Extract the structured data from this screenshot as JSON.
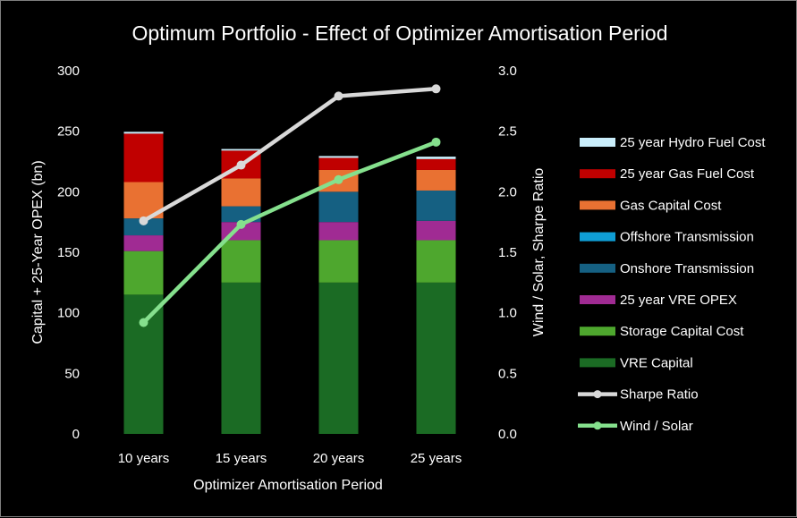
{
  "chart_data": {
    "type": "bar",
    "stacked": true,
    "title": "Optimum Portfolio - Effect of Optimizer Amortisation Period",
    "xlabel": "Optimizer Amortisation Period",
    "ylabel": "Capital + 25-Year OPEX (bn)",
    "y2label": "Wind / Solar, Sharpe Ratio",
    "ylim": [
      0,
      300
    ],
    "y2lim": [
      0,
      3.0
    ],
    "yticks": [
      "0",
      "50",
      "100",
      "150",
      "200",
      "250",
      "300"
    ],
    "y2ticks": [
      "0.0",
      "0.5",
      "1.0",
      "1.5",
      "2.0",
      "2.5",
      "3.0"
    ],
    "grid": false,
    "legend": "right",
    "categories": [
      "10 years",
      "15 years",
      "20 years",
      "25 years"
    ],
    "series": [
      {
        "name": "VRE Capital",
        "color": "#1b6b24",
        "values": [
          115,
          125,
          125,
          125
        ]
      },
      {
        "name": "Storage Capital Cost",
        "color": "#4ea72e",
        "values": [
          36,
          35,
          35,
          35
        ]
      },
      {
        "name": "25 year VRE OPEX",
        "color": "#a02b93",
        "values": [
          13,
          15,
          15,
          16
        ]
      },
      {
        "name": "Onshore Transmission",
        "color": "#156082",
        "values": [
          14,
          13,
          25,
          25
        ]
      },
      {
        "name": "Offshore Transmission",
        "color": "#0f9ed5",
        "values": [
          0,
          0,
          0,
          0
        ]
      },
      {
        "name": "Gas Capital Cost",
        "color": "#e97132",
        "values": [
          30,
          23,
          18,
          17
        ]
      },
      {
        "name": "25 year Gas Fuel Cost",
        "color": "#c00000",
        "values": [
          40,
          23,
          10,
          9
        ]
      },
      {
        "name": "25 year Hydro Fuel Cost",
        "color": "#caeefb",
        "values": [
          1.5,
          1.3,
          1.5,
          2
        ]
      }
    ],
    "lines": [
      {
        "name": "Sharpe Ratio",
        "axis": "right",
        "color": "#d9d9d9",
        "values": [
          1.76,
          2.22,
          2.79,
          2.85
        ]
      },
      {
        "name": "Wind / Solar",
        "axis": "right",
        "color": "#85e08d",
        "values": [
          0.92,
          1.73,
          2.1,
          2.41
        ]
      }
    ]
  }
}
